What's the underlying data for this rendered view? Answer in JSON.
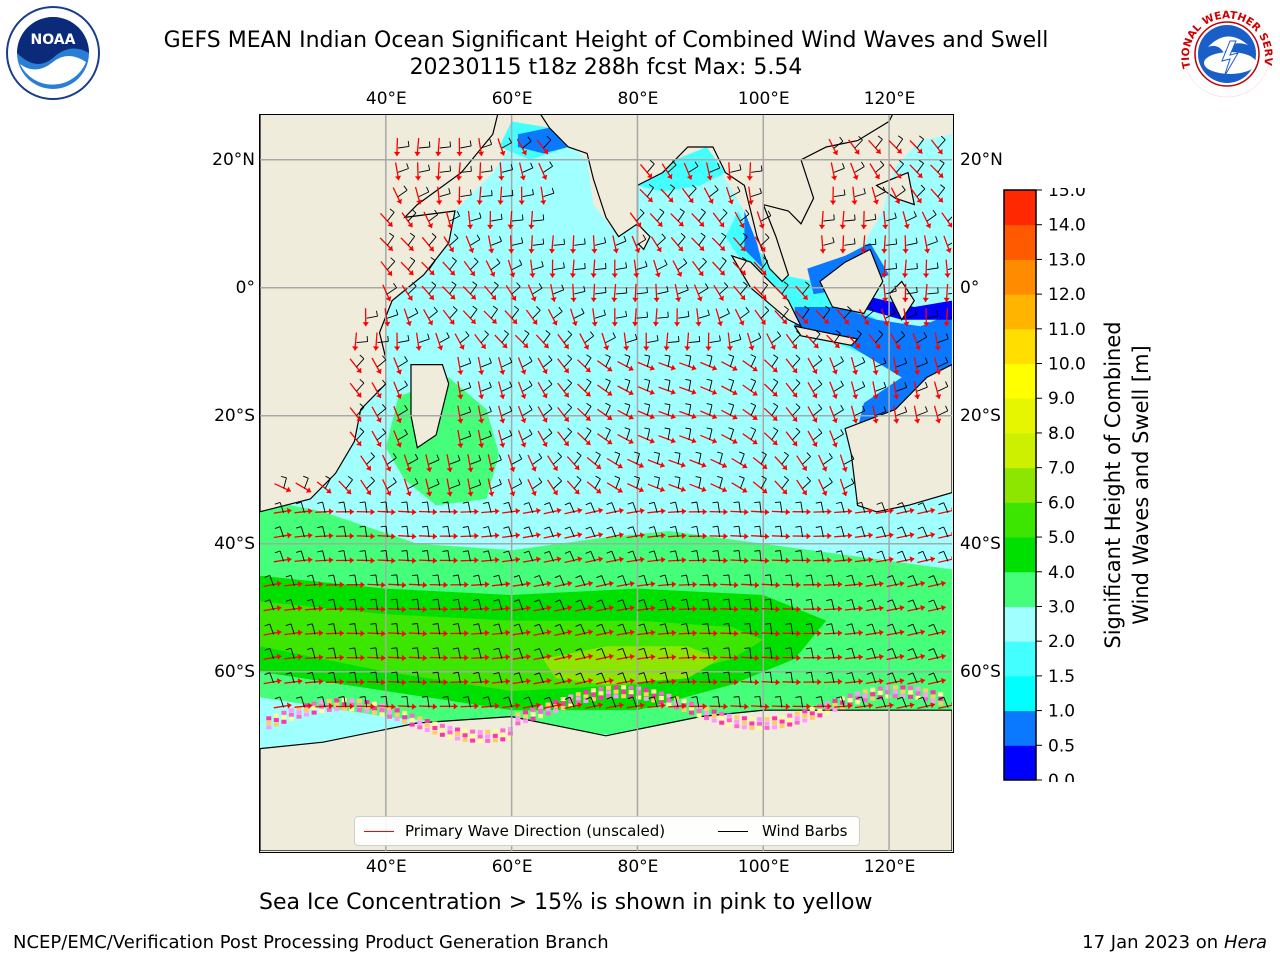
{
  "title": {
    "line1": "GEFS MEAN Indian Ocean Significant Height of Combined Wind Waves and Swell",
    "line2": "20230115 t18z 288h fcst   Max: 5.54"
  },
  "logos": {
    "left": {
      "icon": "noaa-logo-icon",
      "text": "NOAA"
    },
    "right": {
      "icon": "nws-logo-icon",
      "ring_text": "NATIONAL WEATHER SERVICE"
    }
  },
  "map": {
    "projection": "equirectangular",
    "lon_range": [
      20,
      130
    ],
    "lat_range": [
      -88,
      27
    ],
    "grid": true,
    "land_color": "#efecdc",
    "lon_ticks": [
      {
        "lon": 40,
        "label": "40°E"
      },
      {
        "lon": 60,
        "label": "60°E"
      },
      {
        "lon": 80,
        "label": "80°E"
      },
      {
        "lon": 100,
        "label": "100°E"
      },
      {
        "lon": 120,
        "label": "120°E"
      }
    ],
    "lat_ticks": [
      {
        "lat": 20,
        "left": "20°N",
        "right": "20°N"
      },
      {
        "lat": 0,
        "left": "0°",
        "right": "0°"
      },
      {
        "lat": -20,
        "left": "20°S",
        "right": "20°S"
      },
      {
        "lat": -40,
        "left": "40°S",
        "right": "40°S"
      },
      {
        "lat": -60,
        "left": "60°S",
        "right": "60°S"
      }
    ]
  },
  "legend": {
    "wave": {
      "label": "Primary Wave Direction (unscaled)",
      "color": "#ff0000"
    },
    "wind": {
      "label": "Wind Barbs",
      "color": "#000000"
    }
  },
  "colorbar": {
    "title_line1": "Significant Height of Combined",
    "title_line2": "Wind Waves and Swell [m]",
    "levels": [
      0.0,
      0.5,
      1.0,
      1.5,
      2.0,
      3.0,
      4.0,
      5.0,
      6.0,
      7.0,
      8.0,
      9.0,
      10.0,
      11.0,
      12.0,
      13.0,
      14.0,
      15.0
    ],
    "labels": [
      "0.0",
      "0.5",
      "1.0",
      "1.5",
      "2.0",
      "3.0",
      "4.0",
      "5.0",
      "6.0",
      "7.0",
      "8.0",
      "9.0",
      "10.0",
      "11.0",
      "12.0",
      "13.0",
      "14.0",
      "15.0"
    ],
    "colors": [
      "#0000ff",
      "#0a78ff",
      "#00ffff",
      "#44ffff",
      "#a0ffff",
      "#45ff7a",
      "#00e000",
      "#3ce600",
      "#8ce600",
      "#cdf000",
      "#e6f500",
      "#ffff00",
      "#ffde00",
      "#ffb400",
      "#ff8c00",
      "#ff5a00",
      "#ff2800"
    ]
  },
  "sea_ice_note": "Sea Ice Concentration > 15% is shown in pink to yellow",
  "footer": {
    "left": "NCEP/EMC/Verification Post Processing Product Generation Branch",
    "right_date": "17 Jan 2023 on",
    "right_host": "Hera"
  }
}
